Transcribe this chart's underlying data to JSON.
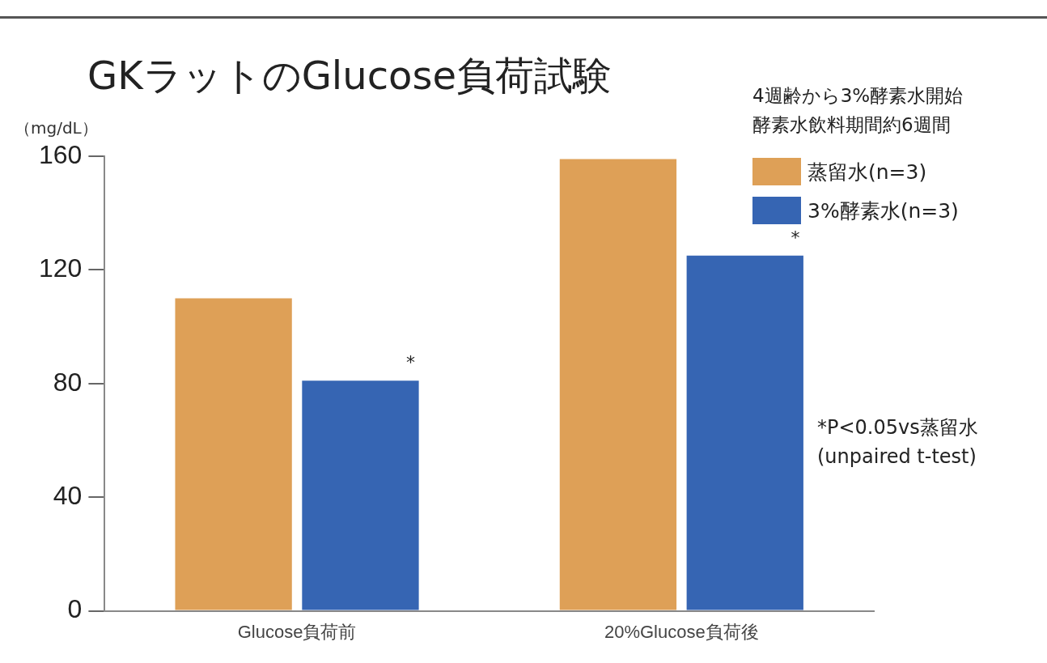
{
  "chart_data": {
    "type": "bar",
    "title": "GKラットのGlucose負荷試験",
    "subtitle": "4週齢から3%酵素水開始",
    "ylabel": "（mg/dL）",
    "categories": [
      "Glucose負荷前",
      "20%Glucose負荷後"
    ],
    "series": [
      {
        "name": "蒸留水(n=3)",
        "color": "#dea057",
        "values": [
          110,
          159
        ]
      },
      {
        "name": "3%酵素水(n=3)",
        "color": "#3665b3",
        "values": [
          81,
          125
        ]
      }
    ],
    "ylim": [
      0,
      160
    ],
    "yticks": [
      0,
      40,
      80,
      120,
      160
    ],
    "grid": false,
    "legend": "top right",
    "annotations": [
      "酵素水飲料期間約6週間",
      "*",
      "*",
      "*P<0.05vs蒸留水\n(unpaired t-test)"
    ]
  }
}
